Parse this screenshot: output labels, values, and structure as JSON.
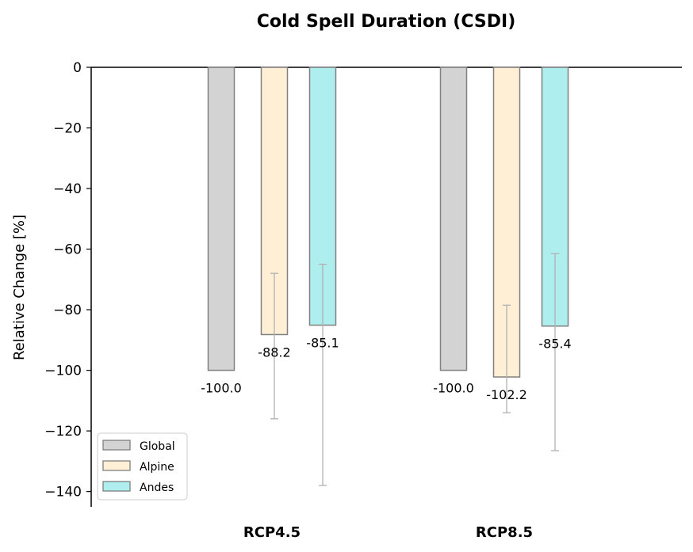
{
  "chart_data": {
    "type": "bar",
    "title": "Cold Spell Duration (CSDI)",
    "xlabel": "",
    "ylabel": "Relative Change [%]",
    "ylim": [
      -145,
      0
    ],
    "yticks": [
      0,
      -20,
      -40,
      -60,
      -80,
      -100,
      -120,
      -140
    ],
    "ytick_labels": [
      "0",
      "−20",
      "−40",
      "−60",
      "−80",
      "−100",
      "−120",
      "−140"
    ],
    "categories": [
      "RCP4.5",
      "RCP8.5"
    ],
    "series": [
      {
        "name": "Global",
        "color": "#d3d3d3",
        "values": [
          -100.0,
          -100.0
        ],
        "labels": [
          "-100.0",
          "-100.0"
        ],
        "error_low": [
          null,
          null
        ],
        "error_high": [
          null,
          null
        ]
      },
      {
        "name": "Alpine",
        "color": "#ffefd5",
        "values": [
          -88.2,
          -102.2
        ],
        "labels": [
          "-88.2",
          "-102.2"
        ],
        "error_low": [
          -116,
          -114
        ],
        "error_high": [
          -68,
          -78.5
        ]
      },
      {
        "name": "Andes",
        "color": "#afeeee",
        "values": [
          -85.1,
          -85.4
        ],
        "labels": [
          "-85.1",
          "-85.4"
        ],
        "error_low": [
          -138,
          -126.5
        ],
        "error_high": [
          -65,
          -61.5
        ]
      }
    ],
    "bar_edge_color": "#808080",
    "error_color": "#b0b0b0",
    "legend_position": "lower-left",
    "grid": false
  }
}
